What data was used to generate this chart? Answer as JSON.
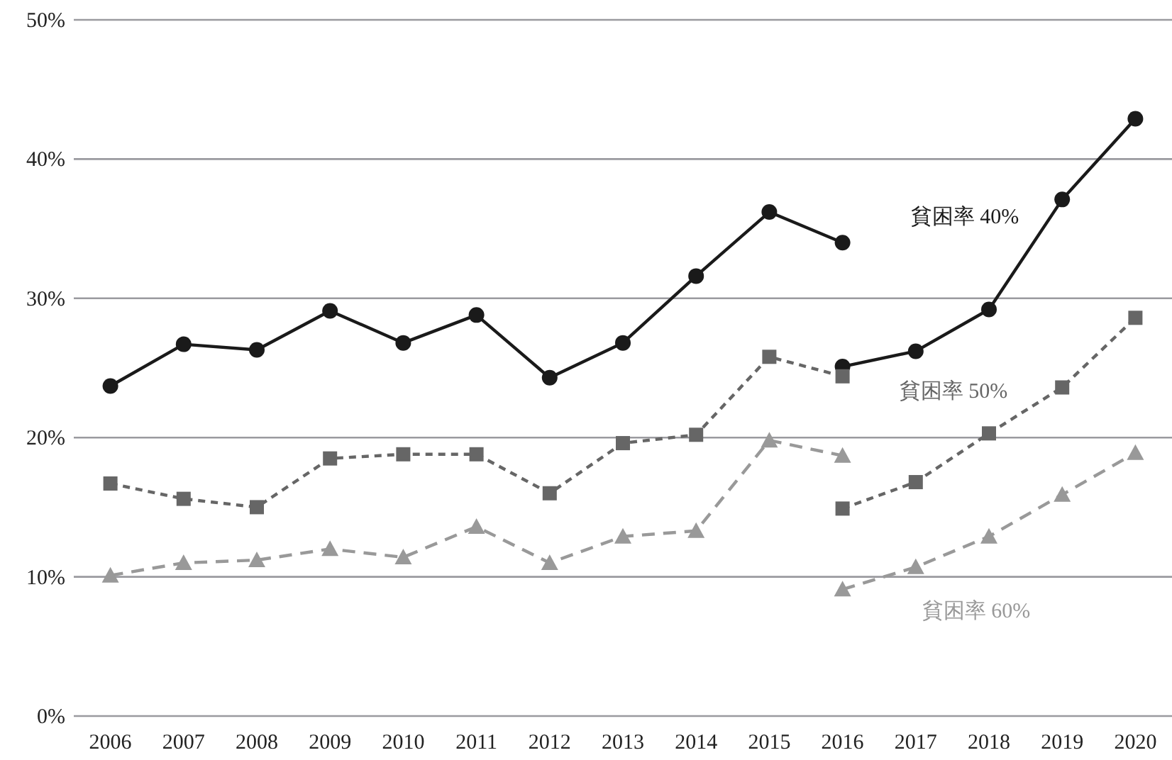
{
  "chart_data": {
    "type": "line",
    "categories": [
      "2006",
      "2007",
      "2008",
      "2009",
      "2010",
      "2011",
      "2012",
      "2013",
      "2014",
      "2015",
      "2016",
      "2017",
      "2018",
      "2019",
      "2020"
    ],
    "ylim": [
      0,
      50
    ],
    "yticks": [
      {
        "value": 0,
        "label": "0%"
      },
      {
        "value": 10,
        "label": "10%"
      },
      {
        "value": 20,
        "label": "20%"
      },
      {
        "value": 30,
        "label": "30%"
      },
      {
        "value": 40,
        "label": "40%"
      },
      {
        "value": 50,
        "label": "50%"
      }
    ],
    "grid": "y",
    "series": [
      {
        "color": "#1a1a1a",
        "marker": "circle",
        "line_style": "solid",
        "values": [
          23.7,
          26.7,
          26.3,
          29.1,
          26.8,
          28.8,
          24.3,
          26.8,
          31.6,
          36.2,
          34.0,
          null,
          null,
          null,
          null
        ]
      },
      {
        "name": "貧困率 40%",
        "color": "#1a1a1a",
        "marker": "circle",
        "line_style": "solid",
        "values": [
          null,
          null,
          null,
          null,
          null,
          null,
          null,
          null,
          null,
          null,
          25.1,
          26.2,
          29.2,
          37.1,
          42.9
        ]
      },
      {
        "color": "#666666",
        "marker": "square",
        "line_style": "dashed",
        "values": [
          16.7,
          15.6,
          15.0,
          18.5,
          18.8,
          18.8,
          16.0,
          19.6,
          20.2,
          25.8,
          24.4,
          null,
          null,
          null,
          null
        ]
      },
      {
        "name": "貧困率 50%",
        "color": "#666666",
        "marker": "square",
        "line_style": "dashed",
        "values": [
          null,
          null,
          null,
          null,
          null,
          null,
          null,
          null,
          null,
          null,
          14.9,
          16.8,
          20.3,
          23.6,
          28.6
        ]
      },
      {
        "color": "#999999",
        "marker": "triangle",
        "line_style": "dashed",
        "values": [
          10.1,
          11.0,
          11.2,
          12.0,
          11.4,
          13.6,
          11.0,
          12.9,
          13.3,
          19.8,
          18.7,
          null,
          null,
          null,
          null
        ]
      },
      {
        "name": "貧困率 60%",
        "color": "#999999",
        "marker": "triangle",
        "line_style": "dashed",
        "values": [
          null,
          null,
          null,
          null,
          null,
          null,
          null,
          null,
          null,
          null,
          9.1,
          10.7,
          12.9,
          15.9,
          18.9
        ]
      }
    ]
  }
}
